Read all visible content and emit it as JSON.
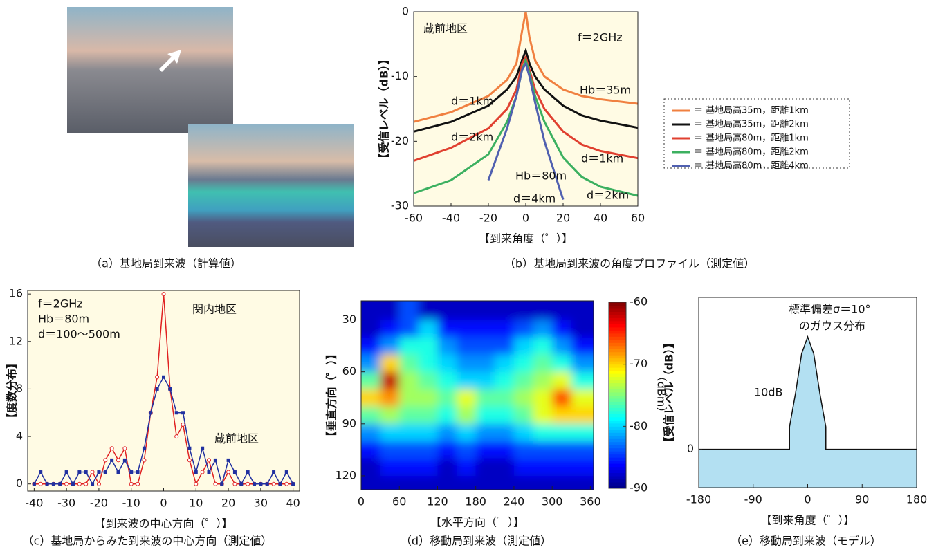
{
  "photo_panel": {
    "caption": "（a）基地局到来波（計算値）"
  },
  "chart_data": [
    {
      "type": "line",
      "caption": "（b）基地局到来波の角度プロファイル（測定値）",
      "x_label": "【到来角度（゜）】",
      "y_label": "【受信レベル（dB）】",
      "background": "#fffbe4",
      "legend": "right",
      "x": [
        -60,
        -40,
        -20,
        -10,
        -5,
        -2,
        0,
        2,
        5,
        10,
        20,
        30,
        40,
        60
      ],
      "series": [
        {
          "name": "＝ 基地局高35m，距離1km",
          "color": "#f08040",
          "values": [
            -17,
            -15.5,
            -13,
            -10.5,
            -8,
            -3,
            0,
            -4,
            -7.5,
            -10,
            -12,
            -13,
            -13.5,
            -14.2
          ]
        },
        {
          "name": "＝ 基地局高35m，距離2km",
          "color": "#111111",
          "values": [
            -18.5,
            -17,
            -14.5,
            -12,
            -10,
            -7.5,
            -6,
            -8,
            -10,
            -12,
            -14.5,
            -16,
            -16.8,
            -17.9
          ]
        },
        {
          "name": "＝ 基地局高80m，距離1km",
          "color": "#e04030",
          "values": [
            -23,
            -21,
            -18,
            -15,
            -12,
            -8,
            -7,
            -9,
            -12,
            -15,
            -18.5,
            -20.5,
            -21.5,
            -22.6
          ]
        },
        {
          "name": "＝ 基地局高80m，距離2km",
          "color": "#3cb060",
          "values": [
            -28,
            -26,
            -22,
            -17,
            -13,
            -9,
            -7.5,
            -9.5,
            -13,
            -17,
            -22.5,
            -25.5,
            -27,
            -28.4
          ]
        },
        {
          "name": "＝ 基地局高80m，距離4km",
          "color": "#5060b0",
          "values": [
            null,
            null,
            -26,
            -18,
            -13,
            -9,
            -8,
            -10,
            -14,
            -20,
            -29,
            null,
            null,
            null
          ]
        }
      ],
      "xlim": [
        -60,
        60
      ],
      "xticks": [
        -60,
        -40,
        -20,
        0,
        20,
        40,
        60
      ],
      "ylim": [
        -30,
        0
      ],
      "yticks": [
        0,
        -10,
        -20,
        -30
      ],
      "annotations": [
        "蔵前地区",
        "f＝2GHz",
        "d＝1km",
        "d＝2km",
        "Hb＝35m",
        "Hb＝80m",
        "d＝1km",
        "d＝4km",
        "d＝2km"
      ]
    },
    {
      "type": "line",
      "caption": "（c）基地局からみた到来波の中心方向（測定値）",
      "x_label": "【到来波の中心方向（゜）】",
      "y_label": "【度数分布】",
      "background": "#fffbe4",
      "x": [
        -40,
        -38,
        -36,
        -34,
        -32,
        -30,
        -28,
        -26,
        -24,
        -22,
        -20,
        -18,
        -16,
        -14,
        -12,
        -10,
        -8,
        -6,
        -4,
        -2,
        0,
        2,
        4,
        6,
        8,
        10,
        12,
        14,
        16,
        18,
        20,
        22,
        24,
        26,
        28,
        30,
        32,
        34,
        36,
        38,
        40
      ],
      "series": [
        {
          "color": "#e02020",
          "marker": "circle",
          "values": [
            0,
            0,
            0,
            0,
            0,
            0,
            0,
            0,
            0,
            1,
            0,
            2,
            3,
            2,
            3,
            0,
            0,
            2,
            6,
            9,
            16,
            8,
            4,
            5,
            2,
            0,
            1,
            2,
            0,
            0,
            1,
            0,
            0,
            0,
            0,
            0,
            0,
            0,
            0,
            0,
            0
          ]
        },
        {
          "color": "#2030a0",
          "marker": "square",
          "values": [
            0,
            1,
            0,
            0,
            0,
            1,
            0,
            1,
            1,
            0,
            1,
            1,
            2,
            1,
            2,
            1,
            1,
            3,
            6,
            8,
            9,
            8,
            6,
            6,
            3,
            1,
            3,
            1,
            2,
            0,
            2,
            1,
            0,
            1,
            0,
            0,
            0,
            1,
            0,
            1,
            0
          ]
        }
      ],
      "xlim": [
        -42,
        42
      ],
      "xticks": [
        -40,
        -30,
        -20,
        -10,
        0,
        10,
        20,
        30,
        40
      ],
      "ylim": [
        -0.6,
        16.3
      ],
      "yticks": [
        0,
        4,
        8,
        12,
        16
      ],
      "annotations": [
        "f＝2GHz",
        "Hb＝80m",
        "d＝100～500m",
        "関内地区",
        "蔵前地区"
      ]
    },
    {
      "type": "heatmap",
      "caption": "（d）移動局到来波（測定値）",
      "x_label": "【水平方向（゜）】",
      "y_label": "【垂直方向（゜）】",
      "colorbar_label": "（dBm）",
      "colormap": "jet",
      "x": [
        15,
        45,
        75,
        105,
        135,
        165,
        195,
        225,
        255,
        285,
        315,
        345
      ],
      "y": [
        25,
        35,
        45,
        55,
        65,
        75,
        85,
        95,
        105,
        115,
        125
      ],
      "values": [
        [
          -88,
          -88,
          -84,
          -88,
          -88,
          -88,
          -88,
          -88,
          -88,
          -88,
          -88,
          -88
        ],
        [
          -88,
          -86,
          -84,
          -80,
          -86,
          -86,
          -86,
          -86,
          -84,
          -82,
          -86,
          -88
        ],
        [
          -86,
          -82,
          -78,
          -78,
          -82,
          -84,
          -84,
          -84,
          -80,
          -78,
          -82,
          -86
        ],
        [
          -82,
          -70,
          -76,
          -78,
          -80,
          -82,
          -82,
          -80,
          -78,
          -76,
          -78,
          -82
        ],
        [
          -76,
          -62,
          -74,
          -76,
          -78,
          -80,
          -80,
          -78,
          -76,
          -74,
          -72,
          -78
        ],
        [
          -70,
          -68,
          -74,
          -74,
          -76,
          -72,
          -76,
          -76,
          -74,
          -72,
          -66,
          -72
        ],
        [
          -76,
          -74,
          -76,
          -76,
          -78,
          -74,
          -78,
          -78,
          -76,
          -72,
          -70,
          -70
        ],
        [
          -82,
          -80,
          -80,
          -80,
          -82,
          -80,
          -82,
          -82,
          -80,
          -78,
          -78,
          -78
        ],
        [
          -86,
          -84,
          -84,
          -84,
          -86,
          -84,
          -86,
          -86,
          -84,
          -84,
          -84,
          -84
        ],
        [
          -88,
          -86,
          -86,
          -86,
          -88,
          -86,
          -88,
          -88,
          -86,
          -86,
          -86,
          -86
        ],
        [
          -88,
          -88,
          -88,
          -88,
          -88,
          -88,
          -88,
          -88,
          -88,
          -88,
          -88,
          -88
        ]
      ],
      "xlim": [
        0,
        365
      ],
      "xticks": [
        0,
        60,
        120,
        180,
        240,
        300,
        360
      ],
      "ylim": [
        128,
        19
      ],
      "yticks": [
        30,
        60,
        90,
        120
      ],
      "zlim": [
        -90,
        -60
      ],
      "zticks": [
        -60,
        -70,
        -80,
        -90
      ]
    },
    {
      "type": "area",
      "caption": "（e）移動局到来波（モデル）",
      "x_label": "【到来角度（゜）】",
      "y_label": "【受信レベル（dB）】",
      "background": "#ffffff",
      "color": "#b3e0f2",
      "x": [
        -180,
        -30,
        -30,
        -20,
        -10,
        0,
        10,
        20,
        30,
        30,
        180
      ],
      "values": [
        0,
        0,
        2,
        5,
        8.5,
        10,
        8.5,
        5,
        2,
        0,
        0
      ],
      "xlim": [
        -180,
        180
      ],
      "xticks": [
        -180,
        -90,
        0,
        90,
        180
      ],
      "ylim": [
        -3.4,
        13.5
      ],
      "yticks": [
        0
      ],
      "annotations": [
        "標準偏差σ＝10°",
        "のガウス分布",
        "10dB"
      ]
    }
  ]
}
